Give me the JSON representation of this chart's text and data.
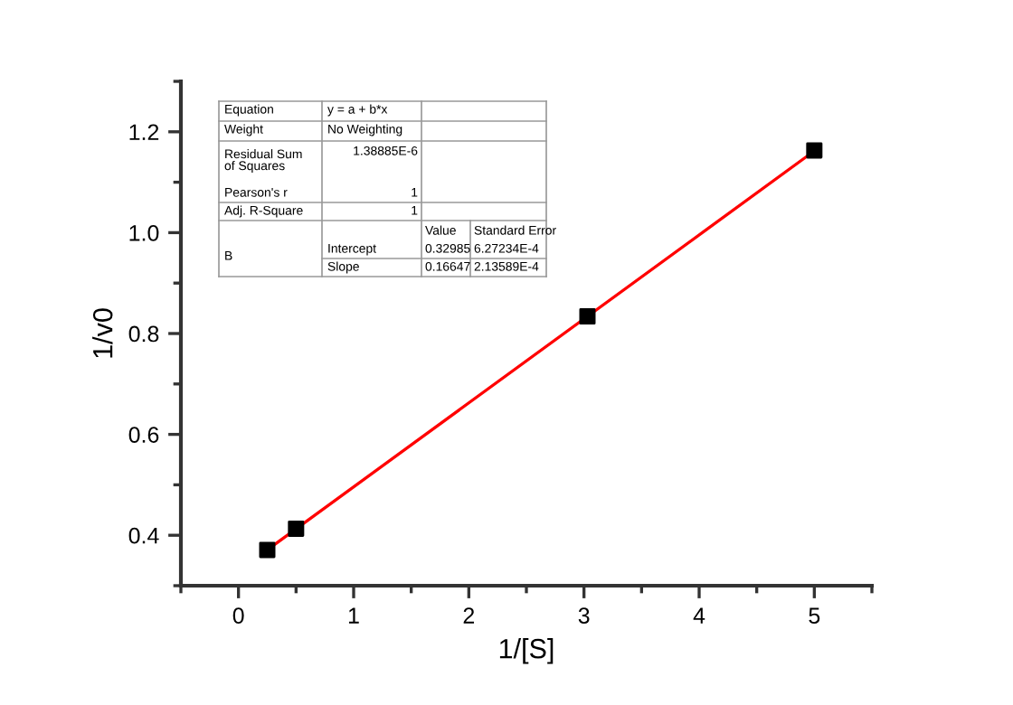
{
  "chart_data": {
    "type": "scatter",
    "xlabel": "1/[S]",
    "ylabel": "1/v0",
    "series": [
      {
        "color": "#000000",
        "marker": "square",
        "x": [
          0.25,
          0.5,
          3.03,
          5
        ],
        "values": [
          0.371,
          0.413,
          0.834,
          1.163
        ]
      },
      {
        "type": "line",
        "color": "#ff0000",
        "marker": "none",
        "line_style": "solid",
        "x": [
          0.25,
          5
        ],
        "values": [
          0.371,
          1.162
        ]
      }
    ],
    "xlim": [
      -0.5,
      5.5
    ],
    "ylim": [
      0.3,
      1.3
    ],
    "xticks": [
      {
        "value": -0.5,
        "label": null
      },
      0,
      {
        "value": 0.5,
        "label": null
      },
      1,
      {
        "value": 1.5,
        "label": null
      },
      2,
      {
        "value": 2.5,
        "label": null
      },
      3,
      {
        "value": 3.5,
        "label": null
      },
      4,
      {
        "value": 4.5,
        "label": null
      },
      5,
      {
        "value": 5.5,
        "label": null
      }
    ],
    "yticks": [
      {
        "value": 0.3,
        "label": null
      },
      0.4,
      {
        "value": 0.5,
        "label": null
      },
      {
        "value": 0.6,
        "label": "0.6"
      },
      {
        "value": 0.7,
        "label": null
      },
      {
        "value": 0.8,
        "label": "0.8"
      },
      {
        "value": 0.9,
        "label": null
      },
      {
        "value": 1.0,
        "label": "1.0"
      },
      {
        "value": 1.1,
        "label": null
      },
      1.2,
      {
        "value": 1.3,
        "label": null
      }
    ],
    "grid": false,
    "legend": false,
    "annotations": [
      "Equation",
      "y = a + b*x",
      "Weight",
      "No Weighting",
      "Residual Sum\nof Squares",
      "1.38885E-6",
      "Pearson's r",
      "1",
      "Adj. R-Square",
      "1",
      "Value",
      "Standard Error",
      "B",
      "Intercept",
      "0.32985",
      "6.27234E-4",
      "Slope",
      "0.16647",
      "2.13589E-4"
    ]
  }
}
